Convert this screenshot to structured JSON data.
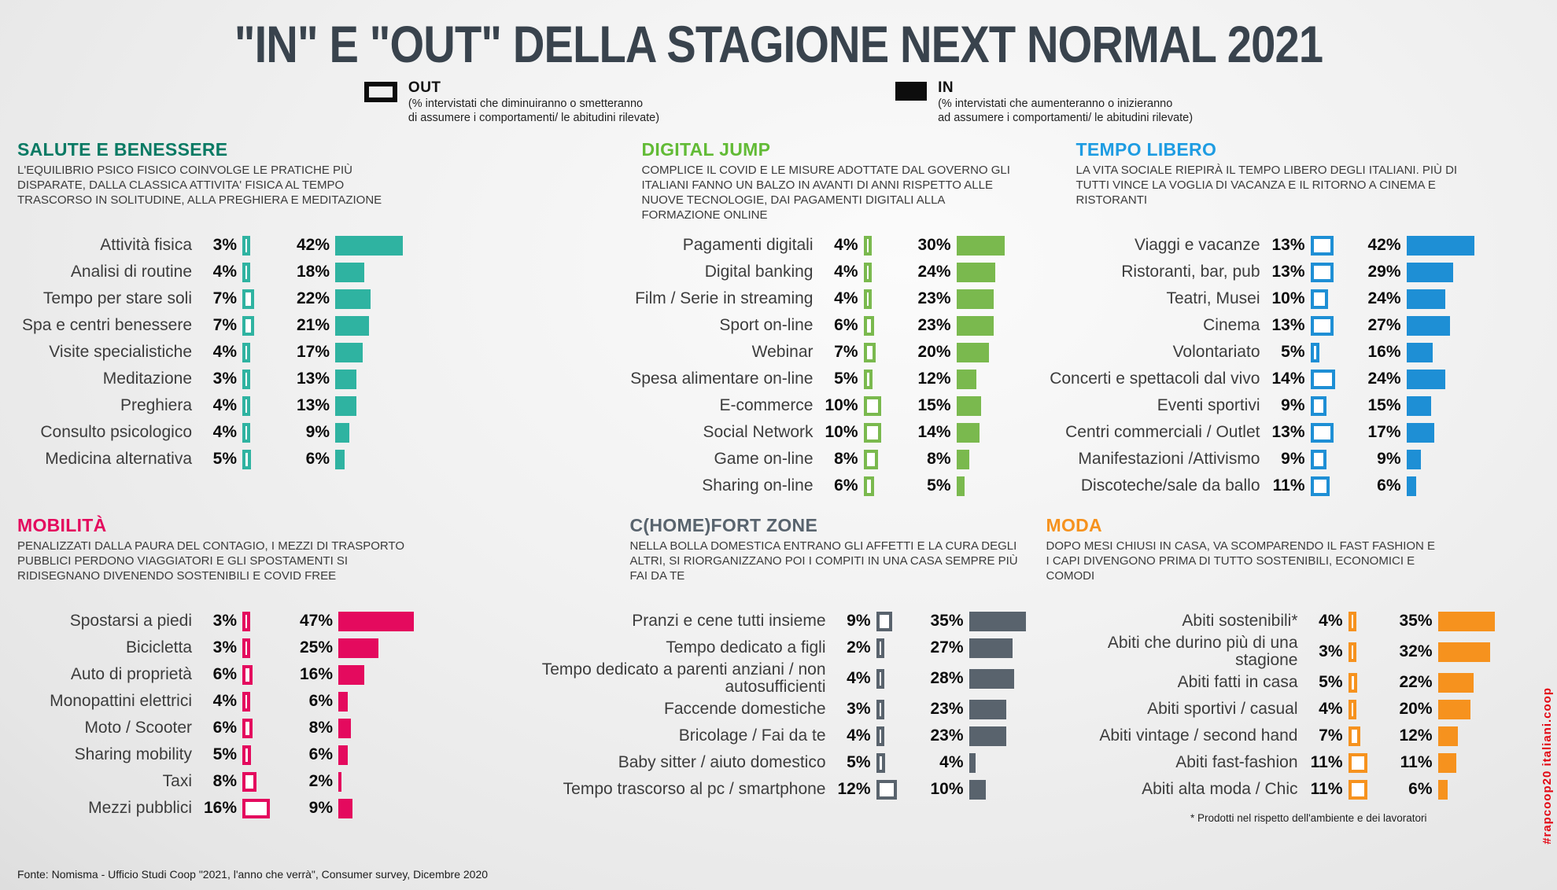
{
  "title": "\"IN\" E \"OUT\" DELLA STAGIONE NEXT NORMAL 2021",
  "legend": {
    "out": {
      "label": "OUT",
      "desc": "(% intervistati che diminuiranno o smetteranno\ndi assumere i comportamenti/ le abitudini rilevate)"
    },
    "in": {
      "label": "IN",
      "desc": "(% intervistati che aumenteranno o inizieranno\nad assumere i comportamenti/ le abitudini rilevate)"
    }
  },
  "footnote": "* Prodotti nel rispetto dell'ambiente e dei lavoratori",
  "source": "Fonte: Nomisma - Ufficio Studi Coop \"2021, l'anno che verrà\", Consumer survey, Dicembre 2020",
  "watermark": "#rapcoop20 italiani.coop",
  "colors": {
    "title": "#39434d",
    "text": "#3b3b3b",
    "legend_swatch": "#0d0d0d",
    "watermark": "#e30613"
  },
  "chart_data": {
    "type": "bar",
    "unit": "%",
    "series": [
      {
        "name": "OUT",
        "meaning": "% intervistati che diminuiranno o smetteranno di assumere i comportamenti/ le abitudini rilevate",
        "style": "outlined-box"
      },
      {
        "name": "IN",
        "meaning": "% intervistati che aumenteranno o inizieranno ad assumere i comportamenti/ le abitudini rilevate",
        "style": "filled-bar"
      }
    ],
    "sections": [
      {
        "id": "salute",
        "title": "SALUTE E BENESSERE",
        "header_color": "#0a7a64",
        "bar_color": "#2fb3a1",
        "description": "L'EQUILIBRIO PSICO FISICO COINVOLGE LE PRATICHE PIÙ DISPARATE, DALLA CLASSICA ATTIVITA' FISICA AL TEMPO TRASCORSO IN SOLITUDINE, ALLA PREGHIERA E MEDITAZIONE",
        "items": [
          {
            "label": "Attività fisica",
            "out": 3,
            "in": 42
          },
          {
            "label": "Analisi di routine",
            "out": 4,
            "in": 18
          },
          {
            "label": "Tempo per stare soli",
            "out": 7,
            "in": 22
          },
          {
            "label": "Spa e centri benessere",
            "out": 7,
            "in": 21
          },
          {
            "label": "Visite specialistiche",
            "out": 4,
            "in": 17
          },
          {
            "label": "Meditazione",
            "out": 3,
            "in": 13
          },
          {
            "label": "Preghiera",
            "out": 4,
            "in": 13
          },
          {
            "label": "Consulto psicologico",
            "out": 4,
            "in": 9
          },
          {
            "label": "Medicina alternativa",
            "out": 5,
            "in": 6
          }
        ]
      },
      {
        "id": "digital",
        "title": "DIGITAL JUMP",
        "header_color": "#62bb36",
        "bar_color": "#7ab94e",
        "description": "COMPLICE IL COVID E LE MISURE ADOTTATE DAL GOVERNO GLI ITALIANI FANNO UN BALZO IN AVANTI DI ANNI RISPETTO ALLE NUOVE TECNOLOGIE, DAI PAGAMENTI DIGITALI ALLA FORMAZIONE ONLINE",
        "items": [
          {
            "label": "Pagamenti digitali",
            "out": 4,
            "in": 30
          },
          {
            "label": "Digital banking",
            "out": 4,
            "in": 24
          },
          {
            "label": "Film / Serie in streaming",
            "out": 4,
            "in": 23
          },
          {
            "label": "Sport on-line",
            "out": 6,
            "in": 23
          },
          {
            "label": "Webinar",
            "out": 7,
            "in": 20
          },
          {
            "label": "Spesa alimentare on-line",
            "out": 5,
            "in": 12
          },
          {
            "label": "E-commerce",
            "out": 10,
            "in": 15
          },
          {
            "label": "Social Network",
            "out": 10,
            "in": 14
          },
          {
            "label": "Game on-line",
            "out": 8,
            "in": 8
          },
          {
            "label": "Sharing on-line",
            "out": 6,
            "in": 5
          }
        ]
      },
      {
        "id": "tempo",
        "title": "TEMPO LIBERO",
        "header_color": "#1e9ce2",
        "bar_color": "#1e8fd5",
        "description": "LA VITA SOCIALE RIEPIRÀ IL TEMPO LIBERO DEGLI ITALIANI. PIÙ DI TUTTI VINCE LA VOGLIA DI VACANZA E IL RITORNO A CINEMA E RISTORANTI",
        "items": [
          {
            "label": "Viaggi e vacanze",
            "out": 13,
            "in": 42
          },
          {
            "label": "Ristoranti, bar, pub",
            "out": 13,
            "in": 29
          },
          {
            "label": "Teatri, Musei",
            "out": 10,
            "in": 24
          },
          {
            "label": "Cinema",
            "out": 13,
            "in": 27
          },
          {
            "label": "Volontariato",
            "out": 5,
            "in": 16
          },
          {
            "label": "Concerti e spettacoli dal vivo",
            "out": 14,
            "in": 24
          },
          {
            "label": "Eventi sportivi",
            "out": 9,
            "in": 15
          },
          {
            "label": "Centri commerciali / Outlet",
            "out": 13,
            "in": 17
          },
          {
            "label": "Manifestazioni /Attivismo",
            "out": 9,
            "in": 9
          },
          {
            "label": "Discoteche/sale da ballo",
            "out": 11,
            "in": 6
          }
        ]
      },
      {
        "id": "mobilita",
        "title": "MOBILITÀ",
        "header_color": "#e40a5e",
        "bar_color": "#e40a5e",
        "description": "PENALIZZATI DALLA PAURA DEL CONTAGIO, I MEZZI DI TRASPORTO PUBBLICI PERDONO VIAGGIATORI E GLI SPOSTAMENTI SI RIDISEGNANO DIVENENDO SOSTENIBILI E COVID FREE",
        "items": [
          {
            "label": "Spostarsi a piedi",
            "out": 3,
            "in": 47
          },
          {
            "label": "Bicicletta",
            "out": 3,
            "in": 25
          },
          {
            "label": "Auto di proprietà",
            "out": 6,
            "in": 16
          },
          {
            "label": "Monopattini elettrici",
            "out": 4,
            "in": 6
          },
          {
            "label": "Moto / Scooter",
            "out": 6,
            "in": 8
          },
          {
            "label": "Sharing mobility",
            "out": 5,
            "in": 6
          },
          {
            "label": "Taxi",
            "out": 8,
            "in": 2
          },
          {
            "label": "Mezzi pubblici",
            "out": 16,
            "in": 9
          }
        ]
      },
      {
        "id": "chome",
        "title": "C(HOME)FORT ZONE",
        "header_color": "#59646e",
        "bar_color": "#59636d",
        "description": "NELLA BOLLA DOMESTICA ENTRANO GLI AFFETTI E LA CURA DEGLI ALTRI, SI RIORGANIZZANO POI I COMPITI IN UNA CASA SEMPRE PIÙ FAI DA TE",
        "items": [
          {
            "label": "Pranzi e cene tutti insieme",
            "out": 9,
            "in": 35
          },
          {
            "label": "Tempo dedicato a figli",
            "out": 2,
            "in": 27
          },
          {
            "label": "Tempo dedicato a parenti anziani / non autosufficienti",
            "out": 4,
            "in": 28
          },
          {
            "label": "Faccende domestiche",
            "out": 3,
            "in": 23
          },
          {
            "label": "Bricolage / Fai da te",
            "out": 4,
            "in": 23
          },
          {
            "label": "Baby sitter / aiuto domestico",
            "out": 5,
            "in": 4
          },
          {
            "label": "Tempo trascorso al pc / smartphone",
            "out": 12,
            "in": 10
          }
        ]
      },
      {
        "id": "moda",
        "title": "MODA",
        "header_color": "#f6921e",
        "bar_color": "#f6921e",
        "description": "DOPO MESI CHIUSI IN CASA, VA SCOMPARENDO IL FAST FASHION E I CAPI DIVENGONO PRIMA DI TUTTO SOSTENIBILI, ECONOMICI E COMODI",
        "items": [
          {
            "label": "Abiti sostenibili*",
            "out": 4,
            "in": 35
          },
          {
            "label": "Abiti che durino più di una stagione",
            "out": 3,
            "in": 32
          },
          {
            "label": "Abiti fatti in casa",
            "out": 5,
            "in": 22
          },
          {
            "label": "Abiti sportivi / casual",
            "out": 4,
            "in": 20
          },
          {
            "label": "Abiti vintage / second hand",
            "out": 7,
            "in": 12
          },
          {
            "label": "Abiti fast-fashion",
            "out": 11,
            "in": 11
          },
          {
            "label": "Abiti alta moda / Chic",
            "out": 11,
            "in": 6
          }
        ]
      }
    ]
  }
}
